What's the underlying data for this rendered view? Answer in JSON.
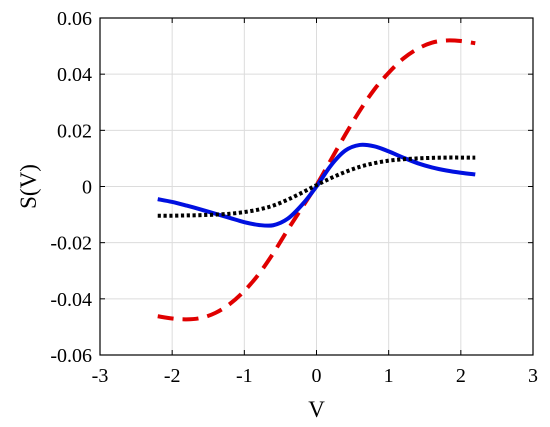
{
  "chart_data": {
    "type": "line",
    "xlabel": "V",
    "ylabel": "S(V)",
    "xlim": [
      -3,
      3
    ],
    "ylim": [
      -0.06,
      0.06
    ],
    "xticks": [
      -3,
      -2,
      -1,
      0,
      1,
      2,
      3
    ],
    "yticks": [
      -0.06,
      -0.04,
      -0.02,
      0,
      0.02,
      0.04,
      0.06
    ],
    "xtick_labels": [
      "-3",
      "-2",
      "-1",
      "0",
      "1",
      "2",
      "3"
    ],
    "ytick_labels": [
      "-0.06",
      "-0.04",
      "-0.02",
      "0",
      "0.02",
      "0.04",
      "0.06"
    ],
    "grid": true,
    "series": [
      {
        "color": "#e00000",
        "style": "dashed",
        "x": [
          -2.2,
          -2.0,
          -1.8,
          -1.6,
          -1.4,
          -1.2,
          -1.0,
          -0.8,
          -0.6,
          -0.4,
          -0.2,
          0.0,
          0.2,
          0.4,
          0.6,
          0.8,
          1.0,
          1.2,
          1.4,
          1.6,
          1.8,
          2.0,
          2.2
        ],
        "y": [
          -0.0462,
          -0.047,
          -0.0473,
          -0.0468,
          -0.045,
          -0.0418,
          -0.0372,
          -0.0312,
          -0.0238,
          -0.0155,
          -0.0075,
          0.0005,
          0.0095,
          0.0185,
          0.027,
          0.0345,
          0.0405,
          0.0455,
          0.049,
          0.0512,
          0.052,
          0.0518,
          0.051
        ]
      },
      {
        "color": "#0010e0",
        "style": "solid",
        "x": [
          -2.2,
          -2.0,
          -1.8,
          -1.6,
          -1.4,
          -1.2,
          -1.0,
          -0.8,
          -0.6,
          -0.4,
          -0.2,
          0.0,
          0.2,
          0.4,
          0.6,
          0.8,
          1.0,
          1.2,
          1.4,
          1.6,
          1.8,
          2.0,
          2.2
        ],
        "y": [
          -0.0045,
          -0.0055,
          -0.0068,
          -0.0082,
          -0.0097,
          -0.0112,
          -0.0127,
          -0.0137,
          -0.0138,
          -0.0115,
          -0.0065,
          0.0,
          0.0075,
          0.0128,
          0.0148,
          0.0143,
          0.0125,
          0.0103,
          0.0083,
          0.0068,
          0.0057,
          0.0049,
          0.0043
        ]
      },
      {
        "color": "#000000",
        "style": "dotted",
        "x": [
          -2.2,
          -2.0,
          -1.8,
          -1.6,
          -1.4,
          -1.2,
          -1.0,
          -0.8,
          -0.6,
          -0.4,
          -0.2,
          0.0,
          0.2,
          0.4,
          0.6,
          0.8,
          1.0,
          1.2,
          1.4,
          1.6,
          1.8,
          2.0,
          2.2
        ],
        "y": [
          -0.0104,
          -0.0104,
          -0.0103,
          -0.0102,
          -0.01,
          -0.0097,
          -0.0091,
          -0.0082,
          -0.0068,
          -0.0047,
          -0.0022,
          0.0005,
          0.003,
          0.0052,
          0.007,
          0.0083,
          0.0092,
          0.0097,
          0.01,
          0.0102,
          0.0103,
          0.0103,
          0.0103
        ]
      }
    ]
  }
}
